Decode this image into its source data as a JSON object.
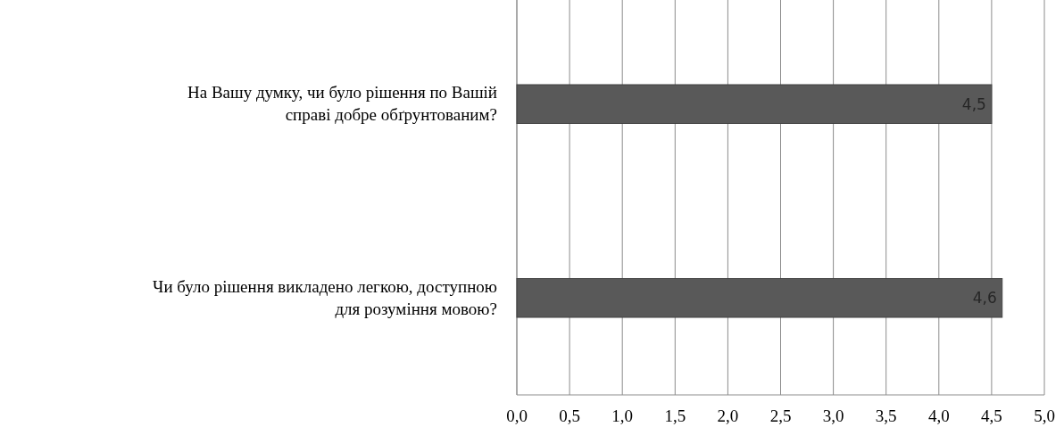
{
  "chart_data": {
    "type": "bar",
    "orientation": "horizontal",
    "categories": [
      "На Вашу думку, чи було рішення по Вашій справі добре обґрунтованим?",
      "Чи було рішення викладено легкою, доступною для розуміння мовою?"
    ],
    "values": [
      4.5,
      4.6
    ],
    "value_labels": [
      "4,5",
      "4,6"
    ],
    "color": "#595959",
    "xlim": [
      0,
      5
    ],
    "xticks": [
      {
        "value": 0,
        "label": "0,0"
      },
      {
        "value": 0.5,
        "label": "0,5"
      },
      {
        "value": 1,
        "label": "1,0"
      },
      {
        "value": 1.5,
        "label": "1,5"
      },
      {
        "value": 2,
        "label": "2,0"
      },
      {
        "value": 2.5,
        "label": "2,5"
      },
      {
        "value": 3,
        "label": "3,0"
      },
      {
        "value": 3.5,
        "label": "3,5"
      },
      {
        "value": 4,
        "label": "4,0"
      },
      {
        "value": 4.5,
        "label": "4,5"
      },
      {
        "value": 5,
        "label": "5,0"
      }
    ],
    "grid": "x"
  }
}
